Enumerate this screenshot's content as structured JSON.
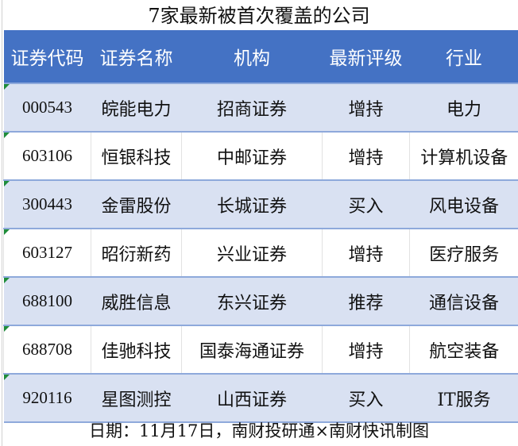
{
  "title": "7家最新被首次覆盖的公司",
  "headers": [
    "证券代码",
    "证券名称",
    "机构",
    "最新评级",
    "行业"
  ],
  "rows": [
    [
      "000543",
      "皖能电力",
      "招商证券",
      "增持",
      "电力"
    ],
    [
      "603106",
      "恒银科技",
      "中邮证券",
      "增持",
      "计算机设备"
    ],
    [
      "300443",
      "金雷股份",
      "长城证券",
      "买入",
      "风电设备"
    ],
    [
      "603127",
      "昭衍新药",
      "兴业证券",
      "增持",
      "医疗服务"
    ],
    [
      "688100",
      "威胜信息",
      "东兴证券",
      "推荐",
      "通信设备"
    ],
    [
      "688708",
      "佳驰科技",
      "国泰海通证券",
      "增持",
      "航空装备"
    ],
    [
      "920116",
      "星图测控",
      "山西证券",
      "买入",
      "IT服务"
    ]
  ],
  "footer": "日期：11月17日，南财投研通×南财快讯制图",
  "colors": {
    "header_bg": "#4472c4",
    "stripe_bg": "#d9e1f2",
    "stripe_border": "#8ea9db"
  }
}
